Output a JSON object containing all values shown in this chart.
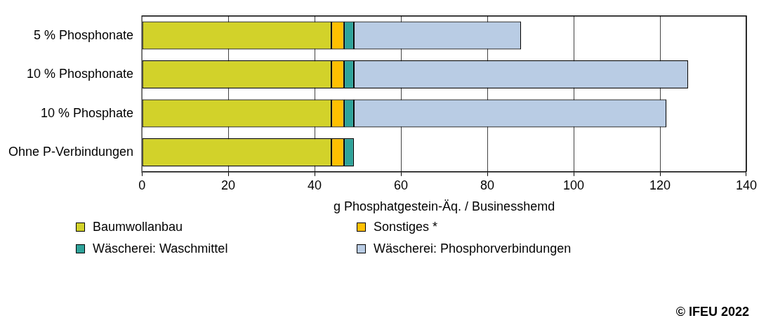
{
  "chart_data": {
    "type": "bar",
    "orientation": "horizontal",
    "stacked": true,
    "categories": [
      "5 % Phosphonate",
      "10 % Phosphonate",
      "10 % Phosphate",
      "Ohne P-Verbindungen"
    ],
    "series": [
      {
        "name": "Baumwollanbau",
        "color": "#d2d22a",
        "values": [
          43.9,
          43.9,
          43.9,
          43.9
        ]
      },
      {
        "name": "Sonstiges *",
        "color": "#ffc000",
        "values": [
          2.9,
          2.9,
          2.9,
          2.9
        ]
      },
      {
        "name": "Wäscherei: Waschmittel",
        "color": "#2fa39a",
        "values": [
          2.3,
          2.3,
          2.3,
          2.3
        ]
      },
      {
        "name": "Wäscherei: Phosphorverbindungen",
        "color": "#b9cce4",
        "values": [
          38.7,
          77.4,
          72.4,
          null
        ]
      }
    ],
    "xlim": [
      0,
      140
    ],
    "xticks": [
      0,
      20,
      40,
      60,
      80,
      100,
      120,
      140
    ],
    "xlabel": "g Phosphatgestein-Äq. / Businesshemd",
    "grid": "x",
    "legend": "bottom left",
    "annotations": [
      "© IFEU 2022"
    ]
  }
}
